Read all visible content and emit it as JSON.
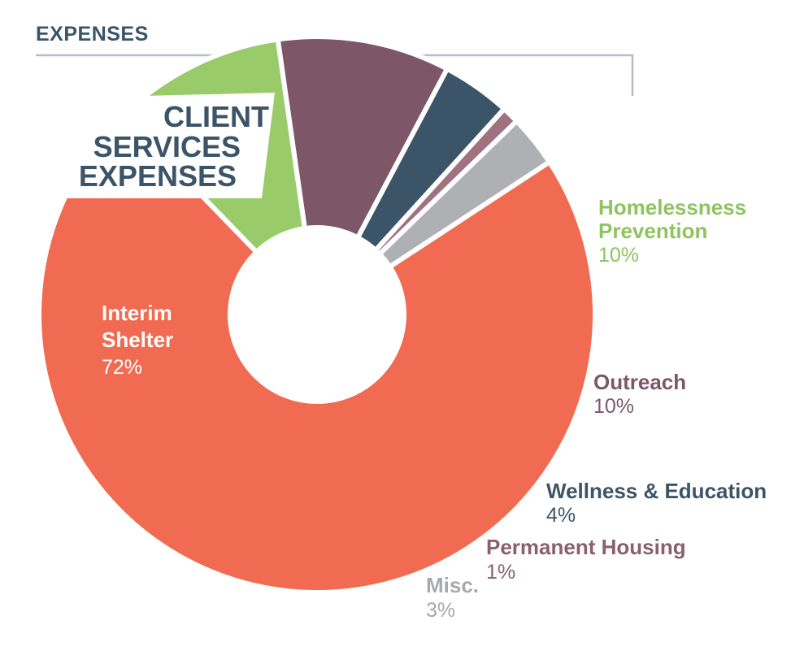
{
  "header": {
    "title": "EXPENSES"
  },
  "callout": {
    "lines": [
      "CLIENT",
      "SERVICES",
      "EXPENSES"
    ]
  },
  "chart_data": {
    "type": "pie",
    "donut": true,
    "title": "EXPENSES",
    "subtitle": "CLIENT SERVICES EXPENSES",
    "slices": [
      {
        "label": "Interim Shelter",
        "label_lines": [
          "Interim",
          "Shelter"
        ],
        "value": 72,
        "value_label": "72%",
        "color": "#F06B51",
        "label_color": "#ffffff"
      },
      {
        "label": "Homelessness Prevention",
        "label_lines": [
          "Homelessness",
          "Prevention"
        ],
        "value": 10,
        "value_label": "10%",
        "color": "#99CB6B",
        "label_color": "#8DC45F"
      },
      {
        "label": "Outreach",
        "label_lines": [
          "Outreach"
        ],
        "value": 10,
        "value_label": "10%",
        "color": "#7D5768",
        "label_color": "#7D5768"
      },
      {
        "label": "Wellness & Education",
        "label_lines": [
          "Wellness & Education"
        ],
        "value": 4,
        "value_label": "4%",
        "color": "#3B5468",
        "label_color": "#3B5468"
      },
      {
        "label": "Permanent Housing",
        "label_lines": [
          "Permanent Housing"
        ],
        "value": 1,
        "value_label": "1%",
        "color": "#A0727F",
        "label_color": "#8A5F6E"
      },
      {
        "label": "Misc.",
        "label_lines": [
          "Misc."
        ],
        "value": 3,
        "value_label": "3%",
        "color": "#AFB0B3",
        "label_color": "#A7A9AC"
      }
    ]
  },
  "colors": {
    "header_text": "#3B5468",
    "bracket_line": "#B8BCC2",
    "callout_bg": "#ffffff"
  }
}
